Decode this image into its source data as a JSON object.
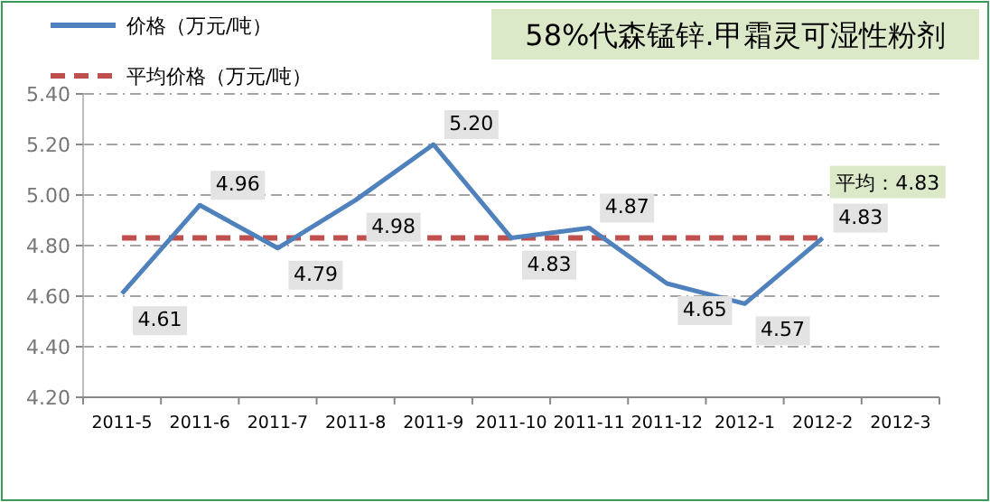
{
  "chart_data": {
    "type": "line",
    "title": "58%代森锰锌.甲霜灵可湿性粉剂",
    "categories": [
      "2011-5",
      "2011-6",
      "2011-7",
      "2011-8",
      "2011-9",
      "2011-10",
      "2011-11",
      "2011-12",
      "2012-1",
      "2012-2",
      "2012-3"
    ],
    "series": [
      {
        "name": "价格（万元/吨）",
        "color": "#4f81bd",
        "values": [
          4.61,
          4.96,
          4.79,
          4.98,
          5.2,
          4.83,
          4.87,
          4.65,
          4.57,
          4.83,
          null
        ],
        "value_labels": [
          "4.61",
          "4.96",
          "4.79",
          "4.98",
          "5.20",
          "4.83",
          "4.87",
          "4.65",
          "4.57",
          "4.83",
          null
        ],
        "line_style": "solid"
      },
      {
        "name": "平均价格（万元/吨）",
        "color": "#c0504d",
        "values": [
          4.83,
          4.83,
          4.83,
          4.83,
          4.83,
          4.83,
          4.83,
          4.83,
          4.83,
          4.83,
          null
        ],
        "line_style": "dashed"
      }
    ],
    "annotations": [
      "平均：4.83"
    ],
    "ylim": [
      4.2,
      5.4
    ],
    "yticks": [
      {
        "value": 4.2,
        "label": "4.20"
      },
      {
        "value": 4.4,
        "label": "4.40"
      },
      {
        "value": 4.6,
        "label": "4.60"
      },
      {
        "value": 4.8,
        "label": "4.80"
      },
      {
        "value": 5.0,
        "label": "5.00"
      },
      {
        "value": 5.2,
        "label": "5.20"
      },
      {
        "value": 5.4,
        "label": "5.40"
      }
    ],
    "grid": "y",
    "legend": "top left",
    "marker": "none"
  }
}
